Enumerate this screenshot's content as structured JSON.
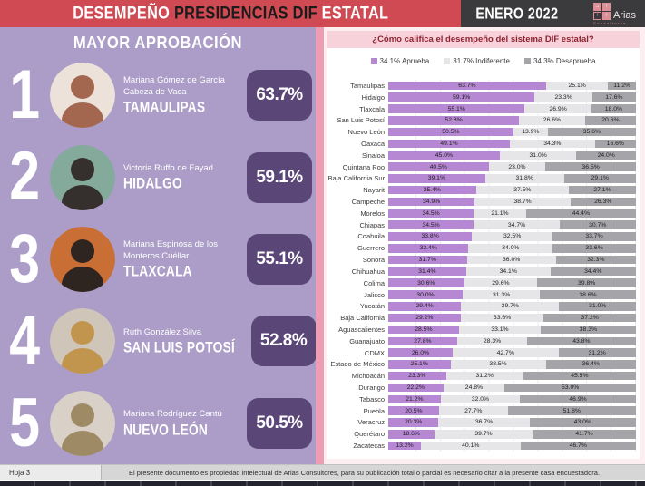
{
  "header": {
    "title_part1": "DESEMPEÑO",
    "title_part2": "PRESIDENCIAS DIF",
    "title_part3": "ESTATAL",
    "date": "ENERO 2022",
    "logo_name": "Arias",
    "logo_sub": "Consultores"
  },
  "left_panel": {
    "title": "MAYOR APROBACIÓN",
    "rankings": [
      {
        "rank": "1",
        "name": "Mariana Gómez de García Cabeza de Vaca",
        "state": "TAMAULIPAS",
        "value": "63.7%",
        "avatar_bg": "#ece2da",
        "avatar_fg": "#a3664f"
      },
      {
        "rank": "2",
        "name": "Victoria Ruffo de Fayad",
        "state": "HIDALGO",
        "value": "59.1%",
        "avatar_bg": "#83aa9b",
        "avatar_fg": "#35302d"
      },
      {
        "rank": "3",
        "name": "Mariana Espinosa de los Monteros Cuéllar",
        "state": "TLAXCALA",
        "value": "55.1%",
        "avatar_bg": "#c96f35",
        "avatar_fg": "#2e2520"
      },
      {
        "rank": "4",
        "name": "Ruth González Silva",
        "state": "SAN LUIS POTOSÍ",
        "value": "52.8%",
        "avatar_bg": "#cfc5b9",
        "avatar_fg": "#c2954f"
      },
      {
        "rank": "5",
        "name": "Mariana Rodríguez Cantú",
        "state": "NUEVO LEÓN",
        "value": "50.5%",
        "avatar_bg": "#d9d0c7",
        "avatar_fg": "#9f8a66"
      }
    ]
  },
  "chart_data": {
    "type": "bar",
    "stacked": true,
    "orientation": "horizontal",
    "title": "¿Cómo califica el desempeño del sistema DIF estatal?",
    "xlim": [
      0,
      100
    ],
    "grid": true,
    "legend_position": "top",
    "legend": [
      {
        "label": "34.1% Aprueba",
        "color": "#b687d2"
      },
      {
        "label": "31.7% Indiferente",
        "color": "#e6e5e8"
      },
      {
        "label": "34.3% Desaprueba",
        "color": "#a5a4a8"
      }
    ],
    "categories": [
      "Tamaulipas",
      "Hidalgo",
      "Tlaxcala",
      "San Luis Potosí",
      "Nuevo León",
      "Oaxaca",
      "Sinaloa",
      "Quintana Roo",
      "Baja California Sur",
      "Nayarit",
      "Campeche",
      "Morelos",
      "Chiapas",
      "Coahuila",
      "Guerrero",
      "Sonora",
      "Chihuahua",
      "Colima",
      "Jalisco",
      "Yucatán",
      "Baja California",
      "Aguascalientes",
      "Guanajuato",
      "CDMX",
      "Estado de México",
      "Michoacán",
      "Durango",
      "Tabasco",
      "Puebla",
      "Veracruz",
      "Querétaro",
      "Zacatecas"
    ],
    "series": [
      {
        "name": "Aprueba",
        "values": [
          63.7,
          59.1,
          55.1,
          52.8,
          50.5,
          49.1,
          45.0,
          40.5,
          39.1,
          35.4,
          34.9,
          34.5,
          34.5,
          33.8,
          32.4,
          31.7,
          31.4,
          30.6,
          30.0,
          29.4,
          29.2,
          28.5,
          27.8,
          26.0,
          25.1,
          23.3,
          22.2,
          21.2,
          20.5,
          20.3,
          18.6,
          13.2
        ]
      },
      {
        "name": "Indiferente",
        "values": [
          25.1,
          23.3,
          26.9,
          26.6,
          13.9,
          34.3,
          31.0,
          23.0,
          31.8,
          37.5,
          38.7,
          21.1,
          34.7,
          32.5,
          34.0,
          36.0,
          34.1,
          29.6,
          31.3,
          39.7,
          33.6,
          33.1,
          28.3,
          42.7,
          38.5,
          31.2,
          24.8,
          32.0,
          27.7,
          36.7,
          39.7,
          40.1
        ]
      },
      {
        "name": "Desaprueba",
        "values": [
          11.2,
          17.6,
          18.0,
          20.6,
          35.6,
          16.6,
          24.0,
          36.5,
          29.1,
          27.1,
          26.3,
          44.4,
          30.7,
          33.7,
          33.6,
          32.3,
          34.4,
          39.8,
          38.6,
          31.0,
          37.2,
          38.3,
          43.8,
          31.2,
          36.4,
          45.5,
          53.0,
          46.9,
          51.8,
          43.0,
          41.7,
          46.7
        ]
      }
    ]
  },
  "footer": {
    "sheet": "Hoja 3",
    "text": "El presente documento es propiedad intelectual de Arias Consultores, para su publicación total o parcial es necesario citar a la presente casa encuestadora."
  },
  "colors": {
    "header_red": "#cf4a52",
    "header_dark": "#3b3b3d",
    "panel_lavender": "#ab9dc7",
    "badge_purple": "#5a4677",
    "pink_accent": "#ef9db3",
    "banner_pink": "#f8d2da",
    "banner_text": "#8c2332",
    "bar_aprueba": "#b687d2",
    "bar_indiferente": "#e6e5e8",
    "bar_desaprueba": "#a5a4a8"
  }
}
